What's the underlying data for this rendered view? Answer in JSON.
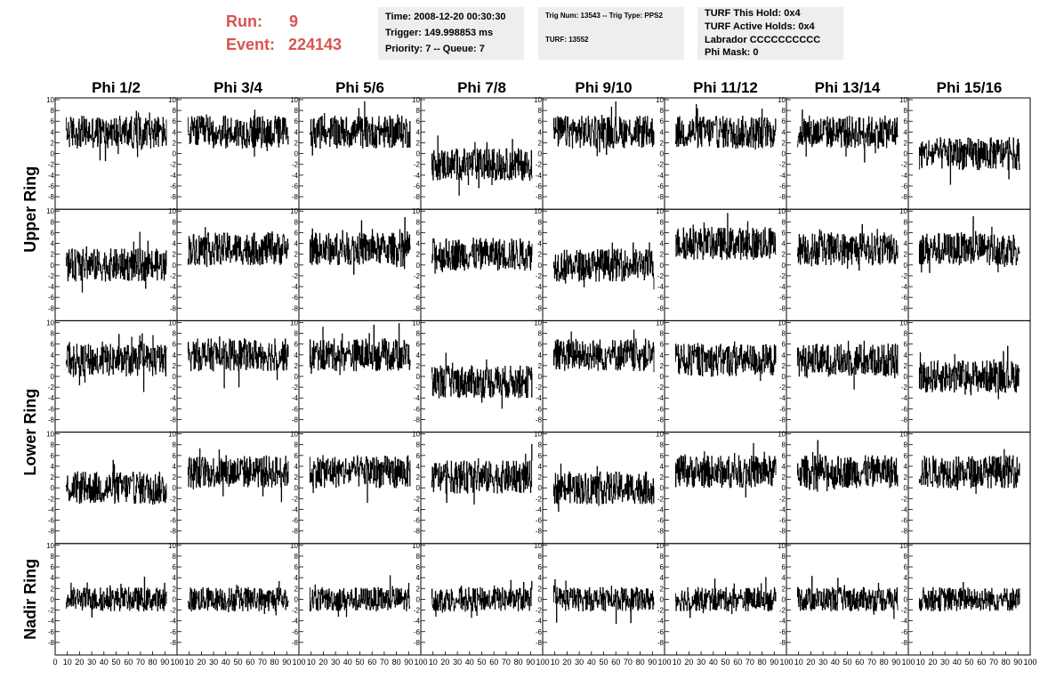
{
  "header": {
    "run_label": "Run:",
    "run_value": "9",
    "event_label": "Event:",
    "event_value": "224143"
  },
  "info_boxes": [
    {
      "lines": [
        "Time: 2008-12-20 00:30:30",
        "Trigger: 149.998853 ms",
        "Priority: 7 -- Queue: 7"
      ]
    },
    {
      "lines": [
        "Trig Num: 13543 -- Trig Type: PPS2",
        "TURF: 13552"
      ]
    },
    {
      "lines": [
        "TURF This Hold: 0x4",
        "TURF Active Holds: 0x4",
        "Labrador CCCCCCCCCC",
        "Phi Mask: 0"
      ]
    }
  ],
  "chart_data": {
    "type": "line",
    "column_titles": [
      "Phi 1/2",
      "Phi 3/4",
      "Phi 5/6",
      "Phi 7/8",
      "Phi 9/10",
      "Phi 11/12",
      "Phi 13/14",
      "Phi 15/16"
    ],
    "ring_labels": [
      "Upper Ring",
      "Lower Ring",
      "Nadir Ring"
    ],
    "ylim": [
      -10,
      10
    ],
    "xlim": [
      0,
      100
    ],
    "y_ticks": [
      -8,
      -6,
      -4,
      -2,
      0,
      2,
      4,
      6,
      8,
      10
    ],
    "x_ticks": [
      "0",
      "10",
      "20",
      "30",
      "40",
      "50",
      "60",
      "70",
      "80",
      "90",
      "100"
    ],
    "grid": false,
    "approx_row_means": [
      [
        4,
        4,
        4,
        -2,
        4,
        4,
        4,
        0
      ],
      [
        0,
        3,
        3,
        2,
        0,
        4,
        3,
        3
      ],
      [
        3,
        4,
        4,
        -1,
        4,
        3,
        3,
        0
      ],
      [
        0,
        3,
        3,
        2,
        0,
        3,
        3,
        3
      ],
      [
        0,
        0,
        0,
        0,
        0,
        0,
        0,
        0
      ]
    ]
  }
}
